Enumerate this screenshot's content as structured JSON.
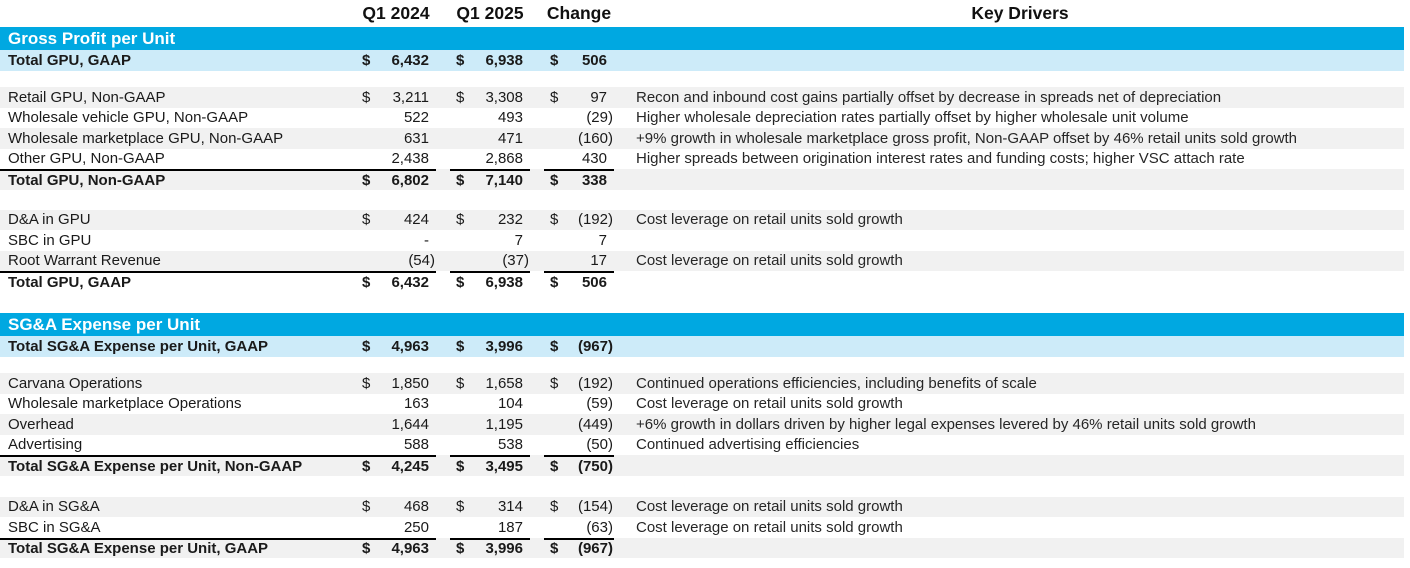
{
  "colors": {
    "section_header_blue": "#00A8E1",
    "summary_row_blue": "#CDEBF9",
    "row_stripe_gray": "#F1F1F1",
    "total_border_black": "#000000"
  },
  "columns": {
    "q1_2024": "Q1 2024",
    "q1_2025": "Q1 2025",
    "change": "Change",
    "key_drivers": "Key Drivers"
  },
  "sections": [
    {
      "title": "Gross Profit per Unit",
      "summary": {
        "label": "Total GPU, GAAP",
        "d1": "$",
        "v1": "6,432",
        "d2": "$",
        "v2": "6,938",
        "d3": "$",
        "v3": "506",
        "driver": ""
      },
      "blocks": [
        {
          "rows": [
            {
              "label": "Retail GPU, Non-GAAP",
              "d1": "$",
              "v1": "3,211",
              "d2": "$",
              "v2": "3,308",
              "d3": "$",
              "v3": "97",
              "driver": "Recon and inbound cost gains partially offset by decrease in spreads net of depreciation"
            },
            {
              "label": "Wholesale vehicle GPU, Non-GAAP",
              "d1": "",
              "v1": "522",
              "d2": "",
              "v2": "493",
              "d3": "",
              "v3": "(29)",
              "driver": "Higher wholesale depreciation rates partially offset by higher wholesale unit volume"
            },
            {
              "label": "Wholesale marketplace GPU, Non-GAAP",
              "d1": "",
              "v1": "631",
              "d2": "",
              "v2": "471",
              "d3": "",
              "v3": "(160)",
              "driver": "+9% growth in wholesale marketplace gross profit, Non-GAAP offset by 46% retail units sold growth"
            },
            {
              "label": "Other GPU, Non-GAAP",
              "d1": "",
              "v1": "2,438",
              "d2": "",
              "v2": "2,868",
              "d3": "",
              "v3": "430",
              "driver": "Higher spreads between origination interest rates and funding costs; higher VSC attach rate"
            }
          ],
          "total": {
            "label": "Total GPU, Non-GAAP",
            "d1": "$",
            "v1": "6,802",
            "d2": "$",
            "v2": "7,140",
            "d3": "$",
            "v3": "338",
            "driver": ""
          }
        },
        {
          "rows": [
            {
              "label": "D&A in GPU",
              "d1": "$",
              "v1": "424",
              "d2": "$",
              "v2": "232",
              "d3": "$",
              "v3": "(192)",
              "driver": "Cost leverage on retail units sold growth"
            },
            {
              "label": "SBC in GPU",
              "d1": "",
              "v1": "-",
              "d2": "",
              "v2": "7",
              "d3": "",
              "v3": "7",
              "driver": ""
            },
            {
              "label": "Root Warrant Revenue",
              "d1": "",
              "v1": "(54)",
              "d2": "",
              "v2": "(37)",
              "d3": "",
              "v3": "17",
              "driver": "Cost leverage on retail units sold growth"
            }
          ],
          "total": {
            "label": "Total GPU, GAAP",
            "d1": "$",
            "v1": "6,432",
            "d2": "$",
            "v2": "6,938",
            "d3": "$",
            "v3": "506",
            "driver": ""
          }
        }
      ]
    },
    {
      "title": "SG&A Expense per Unit",
      "summary": {
        "label": "Total SG&A Expense per Unit, GAAP",
        "d1": "$",
        "v1": "4,963",
        "d2": "$",
        "v2": "3,996",
        "d3": "$",
        "v3": "(967)",
        "driver": ""
      },
      "blocks": [
        {
          "rows": [
            {
              "label": "Carvana Operations",
              "d1": "$",
              "v1": "1,850",
              "d2": "$",
              "v2": "1,658",
              "d3": "$",
              "v3": "(192)",
              "driver": "Continued operations efficiencies, including benefits of scale"
            },
            {
              "label": "Wholesale marketplace Operations",
              "d1": "",
              "v1": "163",
              "d2": "",
              "v2": "104",
              "d3": "",
              "v3": "(59)",
              "driver": "Cost leverage on retail units sold growth"
            },
            {
              "label": "Overhead",
              "d1": "",
              "v1": "1,644",
              "d2": "",
              "v2": "1,195",
              "d3": "",
              "v3": "(449)",
              "driver": "+6% growth in dollars driven by higher legal expenses levered by 46% retail units sold growth"
            },
            {
              "label": "Advertising",
              "d1": "",
              "v1": "588",
              "d2": "",
              "v2": "538",
              "d3": "",
              "v3": "(50)",
              "driver": "Continued advertising efficiencies"
            }
          ],
          "total": {
            "label": "Total SG&A Expense per Unit, Non-GAAP",
            "d1": "$",
            "v1": "4,245",
            "d2": "$",
            "v2": "3,495",
            "d3": "$",
            "v3": "(750)",
            "driver": ""
          }
        },
        {
          "rows": [
            {
              "label": "D&A in SG&A",
              "d1": "$",
              "v1": "468",
              "d2": "$",
              "v2": "314",
              "d3": "$",
              "v3": "(154)",
              "driver": "Cost leverage on retail units sold growth"
            },
            {
              "label": "SBC in SG&A",
              "d1": "",
              "v1": "250",
              "d2": "",
              "v2": "187",
              "d3": "",
              "v3": "(63)",
              "driver": "Cost leverage on retail units sold growth"
            }
          ],
          "total": {
            "label": "Total SG&A Expense per Unit, GAAP",
            "d1": "$",
            "v1": "4,963",
            "d2": "$",
            "v2": "3,996",
            "d3": "$",
            "v3": "(967)",
            "driver": ""
          }
        }
      ]
    }
  ]
}
